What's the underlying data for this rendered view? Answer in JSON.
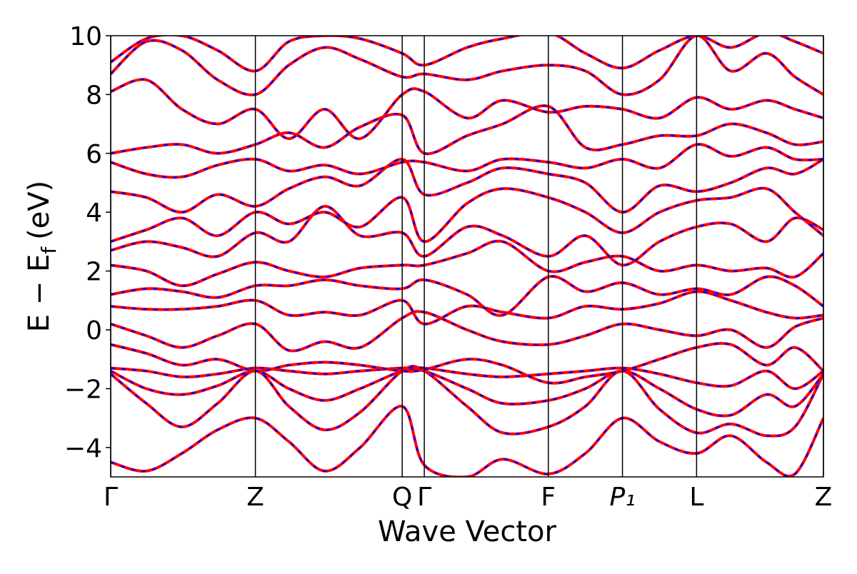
{
  "chart_data": {
    "type": "band",
    "xlabel": "Wave Vector",
    "ylabel": "E − E",
    "ylabel_sub": "f",
    "ylabel_unit": "(eV)",
    "xlim": [
      0,
      1
    ],
    "ylim": [
      -5,
      10
    ],
    "yticks": [
      {
        "value": -4,
        "label": "−4"
      },
      {
        "value": -2,
        "label": "−2"
      },
      0,
      2,
      4,
      6,
      8,
      10
    ],
    "xticks": [
      {
        "value": 0,
        "label": "Γ"
      },
      {
        "value": 0.203,
        "label": "Z"
      },
      {
        "value": 0.409,
        "label": "Q"
      },
      {
        "value": 0.44,
        "label": "Γ"
      },
      {
        "value": 0.614,
        "label": "F"
      },
      {
        "value": 0.718,
        "label": "P₁"
      },
      {
        "value": 0.822,
        "label": "L"
      },
      {
        "value": 1,
        "label": "Z"
      }
    ],
    "kpoint_lines": true,
    "overlay_color": "#0000ff",
    "overlay_dashed": true,
    "x": [
      0,
      0.05,
      0.1,
      0.15,
      0.203,
      0.25,
      0.3,
      0.35,
      0.409,
      0.44,
      0.5,
      0.55,
      0.614,
      0.666,
      0.718,
      0.77,
      0.822,
      0.87,
      0.92,
      0.96,
      1.0
    ],
    "series": [
      {
        "color": "#ff0000",
        "values": [
          -4.5,
          -4.8,
          -4.2,
          -3.4,
          -3.0,
          -3.8,
          -4.8,
          -4.0,
          -2.6,
          -4.6,
          -5.0,
          -4.4,
          -4.9,
          -4.2,
          -3.0,
          -3.8,
          -4.2,
          -3.6,
          -4.5,
          -4.9,
          -3.0
        ]
      },
      {
        "color": "#ff0000",
        "values": [
          -1.5,
          -2.5,
          -3.3,
          -2.5,
          -1.4,
          -2.6,
          -3.4,
          -2.8,
          -1.4,
          -1.4,
          -2.6,
          -3.5,
          -3.3,
          -2.6,
          -1.4,
          -2.7,
          -3.5,
          -3.2,
          -3.6,
          -3.3,
          -1.5
        ]
      },
      {
        "color": "#ff0000",
        "values": [
          -1.4,
          -2.0,
          -2.2,
          -1.9,
          -1.4,
          -2.0,
          -2.4,
          -2.0,
          -1.4,
          -1.4,
          -2.0,
          -2.5,
          -2.4,
          -2.0,
          -1.4,
          -2.0,
          -2.7,
          -2.9,
          -2.2,
          -2.6,
          -1.5
        ]
      },
      {
        "color": "#ff0000",
        "values": [
          -1.3,
          -1.4,
          -1.6,
          -1.5,
          -1.3,
          -1.4,
          -1.5,
          -1.4,
          -1.3,
          -1.3,
          -1.5,
          -1.6,
          -1.5,
          -1.4,
          -1.3,
          -1.5,
          -1.8,
          -1.9,
          -1.4,
          -2.0,
          -1.4
        ]
      },
      {
        "color": "#ff0000",
        "values": [
          -0.5,
          -0.8,
          -1.2,
          -1.0,
          -1.4,
          -1.2,
          -1.1,
          -1.2,
          -1.4,
          -1.35,
          -1.0,
          -1.2,
          -1.8,
          -1.6,
          -1.4,
          -1.0,
          -0.6,
          -0.5,
          -1.2,
          -0.6,
          -1.4
        ]
      },
      {
        "color": "#ff0000",
        "values": [
          0.2,
          -0.2,
          -0.6,
          -0.2,
          0.2,
          -0.7,
          -0.4,
          -0.6,
          0.4,
          0.6,
          0.0,
          -0.4,
          -0.5,
          -0.2,
          0.2,
          0.0,
          -0.2,
          0.0,
          -0.6,
          0.1,
          0.4
        ]
      },
      {
        "color": "#ff0000",
        "values": [
          0.8,
          0.7,
          0.7,
          0.8,
          1.0,
          0.5,
          0.6,
          0.5,
          1.0,
          0.2,
          0.8,
          0.6,
          0.4,
          0.8,
          0.7,
          0.9,
          1.3,
          1.0,
          0.6,
          0.4,
          0.5
        ]
      },
      {
        "color": "#ff0000",
        "values": [
          1.2,
          1.4,
          1.3,
          1.1,
          1.5,
          1.5,
          1.7,
          1.5,
          1.4,
          1.7,
          1.2,
          0.5,
          1.8,
          1.3,
          1.6,
          1.2,
          1.4,
          1.2,
          1.8,
          1.5,
          0.8
        ]
      },
      {
        "color": "#ff0000",
        "values": [
          2.2,
          2.0,
          1.5,
          1.9,
          2.3,
          2.0,
          1.8,
          2.1,
          2.2,
          2.2,
          2.6,
          3.0,
          2.0,
          2.3,
          2.5,
          2.0,
          2.2,
          2.0,
          2.1,
          1.8,
          2.6
        ]
      },
      {
        "color": "#ff0000",
        "values": [
          2.7,
          3.0,
          2.8,
          2.5,
          3.3,
          3.0,
          4.2,
          3.2,
          3.3,
          2.5,
          3.5,
          3.2,
          2.5,
          3.2,
          2.2,
          3.0,
          3.5,
          3.6,
          3.0,
          3.8,
          3.4
        ]
      },
      {
        "color": "#ff0000",
        "values": [
          3.0,
          3.4,
          3.8,
          3.2,
          4.0,
          3.6,
          4.0,
          3.5,
          4.5,
          3.0,
          4.3,
          4.8,
          4.5,
          4.0,
          3.3,
          4.0,
          4.4,
          4.5,
          4.8,
          4.0,
          3.2
        ]
      },
      {
        "color": "#ff0000",
        "values": [
          4.7,
          4.5,
          4.0,
          4.6,
          4.2,
          4.8,
          5.2,
          4.9,
          5.8,
          4.6,
          5.0,
          5.5,
          5.3,
          5.0,
          4.0,
          4.9,
          4.7,
          5.0,
          5.5,
          5.3,
          5.8
        ]
      },
      {
        "color": "#ff0000",
        "values": [
          5.7,
          5.3,
          5.2,
          5.6,
          5.8,
          5.4,
          5.6,
          5.3,
          5.7,
          5.7,
          5.4,
          5.8,
          5.7,
          5.5,
          5.8,
          5.5,
          6.3,
          5.9,
          6.2,
          5.8,
          5.8
        ]
      },
      {
        "color": "#ff0000",
        "values": [
          6.0,
          6.2,
          6.3,
          6.0,
          6.3,
          6.7,
          6.2,
          6.9,
          7.3,
          6.0,
          6.6,
          7.0,
          7.6,
          6.2,
          6.3,
          6.6,
          6.6,
          7.0,
          6.7,
          6.3,
          6.4
        ]
      },
      {
        "color": "#ff0000",
        "values": [
          8.1,
          8.5,
          7.5,
          7.0,
          7.5,
          6.5,
          7.5,
          6.5,
          8.0,
          8.1,
          7.2,
          7.8,
          7.4,
          7.6,
          7.5,
          7.2,
          7.9,
          7.5,
          7.8,
          7.5,
          7.2
        ]
      },
      {
        "color": "#ff0000",
        "values": [
          8.7,
          9.8,
          9.5,
          8.5,
          8.0,
          9.0,
          9.6,
          9.2,
          8.6,
          8.7,
          8.5,
          8.8,
          9.0,
          8.8,
          8.0,
          8.5,
          10.0,
          8.8,
          9.4,
          8.6,
          8.0
        ]
      },
      {
        "color": "#ff0000",
        "values": [
          9.1,
          9.9,
          10.0,
          9.5,
          8.8,
          9.8,
          10.0,
          9.9,
          9.4,
          9.0,
          9.6,
          9.9,
          10.1,
          9.4,
          8.9,
          9.5,
          10.0,
          9.6,
          10.1,
          9.8,
          9.4
        ]
      }
    ]
  }
}
